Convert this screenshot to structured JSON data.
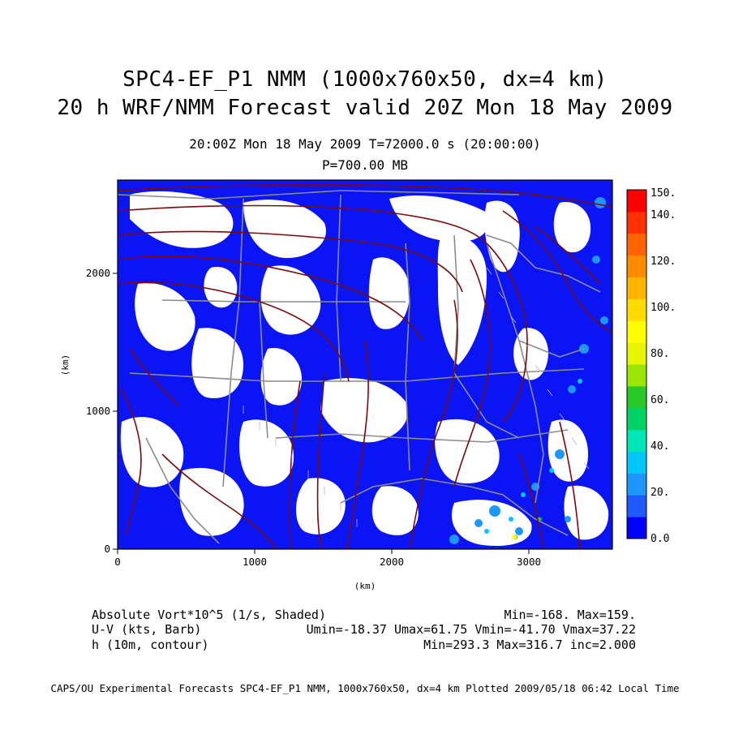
{
  "header": {
    "title_line1": "SPC4-EF_P1 NMM (1000x760x50, dx=4 km)",
    "title_line2": "20 h WRF/NMM Forecast valid 20Z Mon 18 May 2009",
    "valid_time": "20:00Z Mon 18 May 2009    T=72000.0 s (20:00:00)",
    "pressure_level": "P=700.00 MB"
  },
  "axes": {
    "x_label": "(km)",
    "y_label": "(km)",
    "x_ticks": [
      "0",
      "1000",
      "2000",
      "3000"
    ],
    "y_ticks": [
      "0",
      "1000",
      "2000"
    ]
  },
  "colorbar": {
    "labels": [
      "0.0",
      "20.",
      "40.",
      "60.",
      "80.",
      "100.",
      "120.",
      "140.",
      "150."
    ],
    "colors": [
      "#0000ff",
      "#1e5aff",
      "#1e96ff",
      "#00c8ff",
      "#00e6b4",
      "#00d264",
      "#28c828",
      "#9be600",
      "#e6f500",
      "#ffff00",
      "#ffdc00",
      "#ffb400",
      "#ff8c00",
      "#ff6400",
      "#ff3200",
      "#ff0000"
    ]
  },
  "legend": {
    "field1_name": "Absolute Vort*10^5 (1/s, Shaded)",
    "field1_stats": "Min=-168. Max=159.",
    "field2_name": "U-V (kts, Barb)",
    "field2_stats": "Umin=-18.37 Umax=61.75 Vmin=-41.70 Vmax=37.22",
    "field3_name": "h (10m, contour)",
    "field3_stats": "Min=293.3 Max=316.7 inc=2.000"
  },
  "footer": {
    "text": "CAPS/OU Experimental Forecasts  SPC4-EF_P1 NMM, 1000x760x50, dx=4 km  Plotted 2009/05/18 06:42 Local Time"
  }
}
